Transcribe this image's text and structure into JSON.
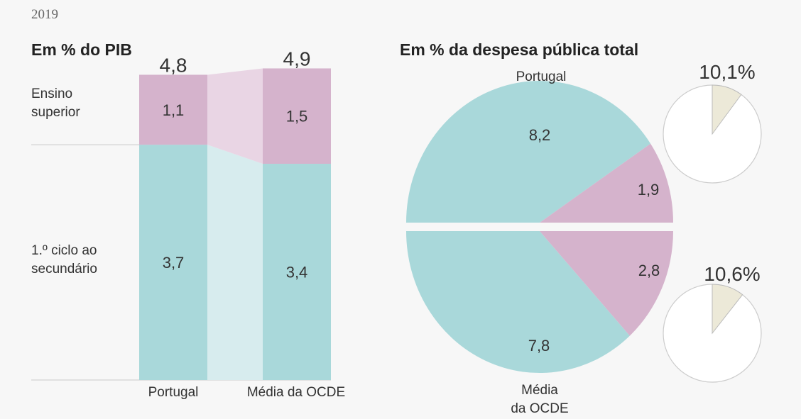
{
  "colors": {
    "background": "#f7f7f7",
    "basic": "#a9d8da",
    "basic_light": "#d7ecee",
    "higher": "#d5b3cc",
    "higher_light": "#e9d5e4",
    "outside": "#ffffff",
    "outside_slice": "#ece9d8",
    "rule": "#c8c8c8"
  },
  "chart_data": [
    {
      "type": "bar",
      "stacked": true,
      "title": "Em % do PIB",
      "year": "2019",
      "categories": [
        "Portugal",
        "Média da OCDE"
      ],
      "totals": [
        "4,8",
        "4,9"
      ],
      "series": [
        {
          "name": "1.º ciclo ao secundário",
          "label_lines": [
            "1.º ciclo ao",
            "secundário"
          ],
          "values": [
            3.7,
            3.4
          ],
          "labels": [
            "3,7",
            "3,4"
          ]
        },
        {
          "name": "Ensino superior",
          "label_lines": [
            "Ensino",
            "superior"
          ],
          "values": [
            1.1,
            1.5
          ],
          "labels": [
            "1,1",
            "1,5"
          ]
        }
      ]
    },
    {
      "type": "pie",
      "title": "Em  % da despesa pública total",
      "pies": [
        {
          "name": "Portugal",
          "label_lines": [
            "Portugal"
          ],
          "slices": [
            {
              "name": "1.º ciclo ao secundário",
              "value": 8.2,
              "label": "8,2"
            },
            {
              "name": "Ensino superior",
              "value": 1.9,
              "label": "1,9"
            }
          ],
          "total_label": "10,1%",
          "share_of_total": 10.1
        },
        {
          "name": "Média da OCDE",
          "label_lines": [
            "Média",
            "da OCDE"
          ],
          "slices": [
            {
              "name": "1.º ciclo ao secundário",
              "value": 7.8,
              "label": "7,8"
            },
            {
              "name": "Ensino superior",
              "value": 2.8,
              "label": "2,8"
            }
          ],
          "total_label": "10,6%",
          "share_of_total": 10.6
        }
      ]
    }
  ]
}
